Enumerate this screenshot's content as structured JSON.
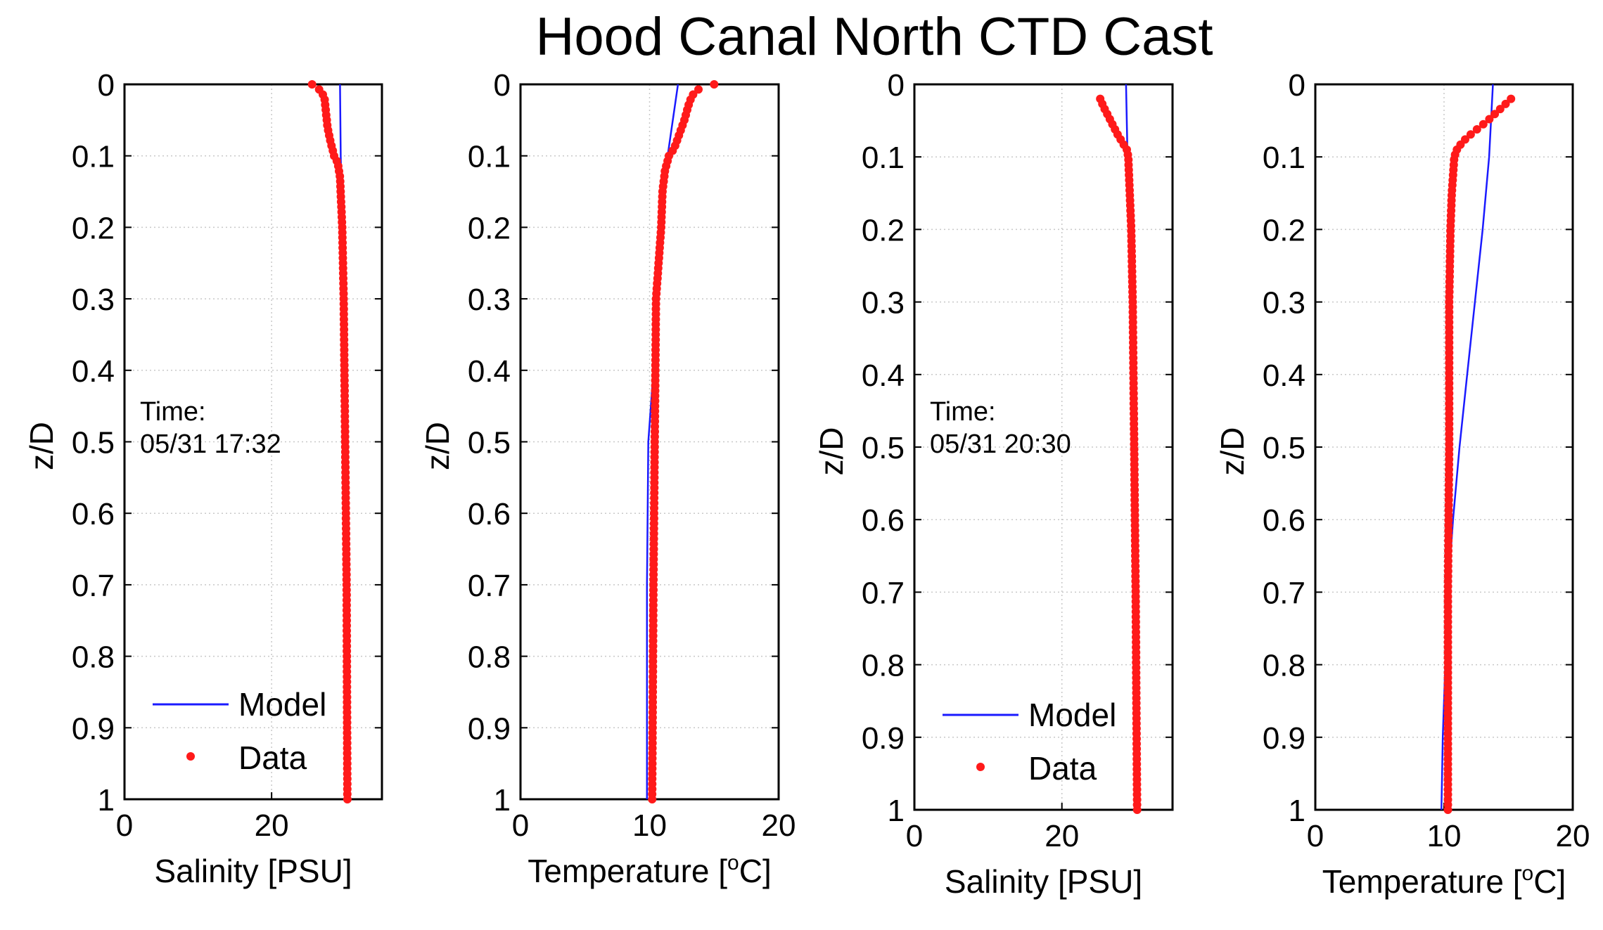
{
  "title": "Hood Canal North CTD Cast",
  "chart_data": [
    {
      "type": "line",
      "panel": "salinity-cast-1",
      "xlabel": "Salinity [PSU]",
      "ylabel": "z/D",
      "xlim": [
        0,
        35
      ],
      "ylim": [
        0,
        1
      ],
      "xticks": [
        "0",
        "20"
      ],
      "xtick_values": [
        0,
        20
      ],
      "yticks": [
        "0",
        "0.1",
        "0.2",
        "0.3",
        "0.4",
        "0.5",
        "0.6",
        "0.7",
        "0.8",
        "0.9",
        "1"
      ],
      "grid": true,
      "annotation": {
        "line1": "Time:",
        "line2": "05/31 17:32"
      },
      "legend": {
        "model": "Model",
        "data": "Data",
        "position": "bottom-left"
      },
      "series": [
        {
          "name": "Model",
          "z": [
            0,
            0.1,
            0.15,
            0.2,
            0.3,
            0.5,
            0.7,
            1.0
          ],
          "x": [
            29.3,
            29.4,
            29.5,
            29.6,
            29.8,
            30.0,
            30.2,
            30.5
          ]
        },
        {
          "name": "Data",
          "z": [
            0,
            0.005,
            0.01,
            0.02,
            0.04,
            0.06,
            0.08,
            0.1,
            0.11,
            0.13,
            0.2,
            0.3,
            0.5,
            0.7,
            1.0
          ],
          "x": [
            25.5,
            26.2,
            26.8,
            27.2,
            27.4,
            27.6,
            28.0,
            28.5,
            29.0,
            29.3,
            29.6,
            29.8,
            30.0,
            30.2,
            30.3
          ]
        }
      ]
    },
    {
      "type": "line",
      "panel": "temperature-cast-1",
      "xlabel_main": "Temperature [",
      "xlabel_sup": "o",
      "xlabel_end": "C]",
      "ylabel": "z/D",
      "xlim": [
        0,
        20
      ],
      "ylim": [
        0,
        1
      ],
      "xticks": [
        "0",
        "10",
        "20"
      ],
      "xtick_values": [
        0,
        10,
        20
      ],
      "yticks": [
        "0",
        "0.1",
        "0.2",
        "0.3",
        "0.4",
        "0.5",
        "0.6",
        "0.7",
        "0.8",
        "0.9",
        "1"
      ],
      "grid": true,
      "series": [
        {
          "name": "Model",
          "z": [
            0,
            0.1,
            0.2,
            0.3,
            0.4,
            0.5,
            0.7,
            1.0
          ],
          "x": [
            12.2,
            11.4,
            10.9,
            10.6,
            10.3,
            9.9,
            9.8,
            9.8
          ]
        },
        {
          "name": "Data",
          "z": [
            0,
            0.005,
            0.01,
            0.02,
            0.03,
            0.05,
            0.07,
            0.09,
            0.1,
            0.12,
            0.15,
            0.2,
            0.25,
            0.3,
            0.5,
            0.7,
            1.0
          ],
          "x": [
            15.0,
            14.0,
            13.5,
            13.2,
            13.0,
            12.7,
            12.3,
            11.9,
            11.5,
            11.2,
            11.0,
            10.9,
            10.7,
            10.5,
            10.4,
            10.3,
            10.2
          ]
        }
      ]
    },
    {
      "type": "line",
      "panel": "salinity-cast-2",
      "xlabel": "Salinity [PSU]",
      "ylabel": "z/D",
      "xlim": [
        0,
        35
      ],
      "ylim": [
        0,
        1
      ],
      "xticks": [
        "0",
        "20"
      ],
      "xtick_values": [
        0,
        20
      ],
      "yticks": [
        "0",
        "0.1",
        "0.2",
        "0.3",
        "0.4",
        "0.5",
        "0.6",
        "0.7",
        "0.8",
        "0.9",
        "1"
      ],
      "grid": true,
      "annotation": {
        "line1": "Time:",
        "line2": "05/31 20:30"
      },
      "legend": {
        "model": "Model",
        "data": "Data",
        "position": "bottom-left"
      },
      "series": [
        {
          "name": "Model",
          "z": [
            0,
            0.1,
            0.2,
            0.4,
            0.6,
            0.8,
            1.0
          ],
          "x": [
            28.7,
            28.9,
            29.1,
            29.4,
            29.7,
            30.0,
            30.2
          ]
        },
        {
          "name": "Data",
          "z": [
            0.02,
            0.03,
            0.04,
            0.05,
            0.06,
            0.07,
            0.08,
            0.09,
            0.1,
            0.15,
            0.2,
            0.3,
            0.5,
            0.7,
            1.0
          ],
          "x": [
            25.2,
            25.6,
            26.1,
            26.6,
            27.1,
            27.6,
            28.2,
            28.8,
            29.0,
            29.2,
            29.4,
            29.6,
            29.8,
            30.0,
            30.2
          ]
        }
      ]
    },
    {
      "type": "line",
      "panel": "temperature-cast-2",
      "xlabel_main": "Temperature [",
      "xlabel_sup": "o",
      "xlabel_end": "C]",
      "ylabel": "z/D",
      "xlim": [
        0,
        20
      ],
      "ylim": [
        0,
        1
      ],
      "xticks": [
        "0",
        "10",
        "20"
      ],
      "xtick_values": [
        0,
        10,
        20
      ],
      "yticks": [
        "0",
        "0.1",
        "0.2",
        "0.3",
        "0.4",
        "0.5",
        "0.6",
        "0.7",
        "0.8",
        "0.9",
        "1"
      ],
      "grid": true,
      "series": [
        {
          "name": "Model",
          "z": [
            0,
            0.1,
            0.2,
            0.3,
            0.4,
            0.5,
            0.6,
            0.7,
            0.8,
            0.9,
            1.0
          ],
          "x": [
            13.8,
            13.5,
            13.0,
            12.4,
            11.8,
            11.2,
            10.7,
            10.3,
            10.1,
            9.9,
            9.8
          ]
        },
        {
          "name": "Data",
          "z": [
            0.02,
            0.03,
            0.04,
            0.05,
            0.06,
            0.07,
            0.08,
            0.09,
            0.1,
            0.15,
            0.2,
            0.3,
            0.5,
            0.7,
            1.0
          ],
          "x": [
            15.2,
            14.6,
            14.0,
            13.4,
            12.7,
            12.0,
            11.4,
            11.0,
            10.8,
            10.6,
            10.5,
            10.4,
            10.4,
            10.3,
            10.3
          ]
        }
      ]
    }
  ]
}
